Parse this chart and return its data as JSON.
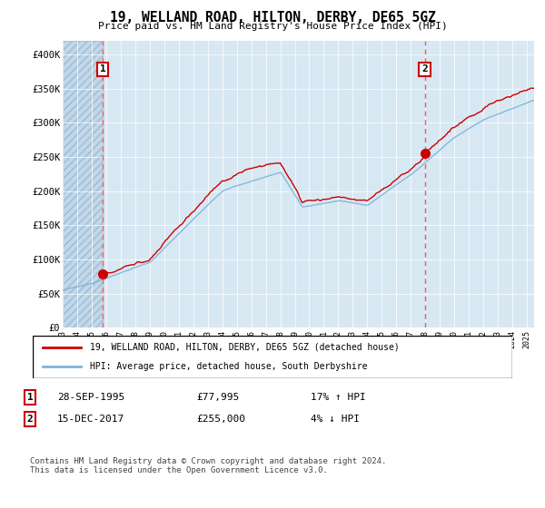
{
  "title": "19, WELLAND ROAD, HILTON, DERBY, DE65 5GZ",
  "subtitle": "Price paid vs. HM Land Registry's House Price Index (HPI)",
  "ylabel_ticks": [
    "£0",
    "£50K",
    "£100K",
    "£150K",
    "£200K",
    "£250K",
    "£300K",
    "£350K",
    "£400K"
  ],
  "ytick_values": [
    0,
    50000,
    100000,
    150000,
    200000,
    250000,
    300000,
    350000,
    400000
  ],
  "ylim": [
    0,
    420000
  ],
  "xlim_start": 1993.0,
  "xlim_end": 2025.5,
  "purchase1_date": 1995.75,
  "purchase1_price": 77995,
  "purchase2_date": 2017.96,
  "purchase2_price": 255000,
  "hpi_color": "#7ab4d8",
  "price_color": "#cc0000",
  "marker_color": "#cc0000",
  "dashed_line_color": "#ff5555",
  "background_color": "#d8e8f3",
  "legend_label1": "19, WELLAND ROAD, HILTON, DERBY, DE65 5GZ (detached house)",
  "legend_label2": "HPI: Average price, detached house, South Derbyshire",
  "note1_date": "28-SEP-1995",
  "note1_price": "£77,995",
  "note1_hpi": "17% ↑ HPI",
  "note2_date": "15-DEC-2017",
  "note2_price": "£255,000",
  "note2_hpi": "4% ↓ HPI",
  "footer": "Contains HM Land Registry data © Crown copyright and database right 2024.\nThis data is licensed under the Open Government Licence v3.0."
}
